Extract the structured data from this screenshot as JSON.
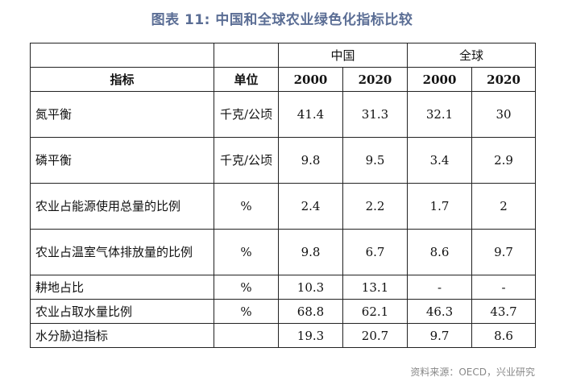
{
  "title": "图表 11: 中国和全球农业绿色化指标比较",
  "groups": {
    "china": "中国",
    "global": "全球"
  },
  "headers": {
    "indicator": "指标",
    "unit": "单位",
    "years": [
      "2000",
      "2020",
      "2000",
      "2020"
    ]
  },
  "rows": [
    {
      "indicator": "氮平衡",
      "unit": "千克/公顷",
      "values": [
        "41.4",
        "31.3",
        "32.1",
        "30"
      ]
    },
    {
      "indicator": "磷平衡",
      "unit": "千克/公顷",
      "values": [
        "9.8",
        "9.5",
        "3.4",
        "2.9"
      ]
    },
    {
      "indicator": "农业占能源使用总量的比例",
      "unit": "%",
      "values": [
        "2.4",
        "2.2",
        "1.7",
        "2"
      ]
    },
    {
      "indicator": "农业占温室气体排放量的比例",
      "unit": "%",
      "values": [
        "9.8",
        "6.7",
        "8.6",
        "9.7"
      ]
    },
    {
      "indicator": "耕地占比",
      "unit": "%",
      "values": [
        "10.3",
        "13.1",
        "-",
        "-"
      ]
    },
    {
      "indicator": "农业占取水量比例",
      "unit": "%",
      "values": [
        "68.8",
        "62.1",
        "46.3",
        "43.7"
      ]
    },
    {
      "indicator": "水分胁迫指标",
      "unit": "",
      "values": [
        "19.3",
        "20.7",
        "9.7",
        "8.6"
      ]
    }
  ],
  "source": "资料来源：OECD，兴业研究"
}
